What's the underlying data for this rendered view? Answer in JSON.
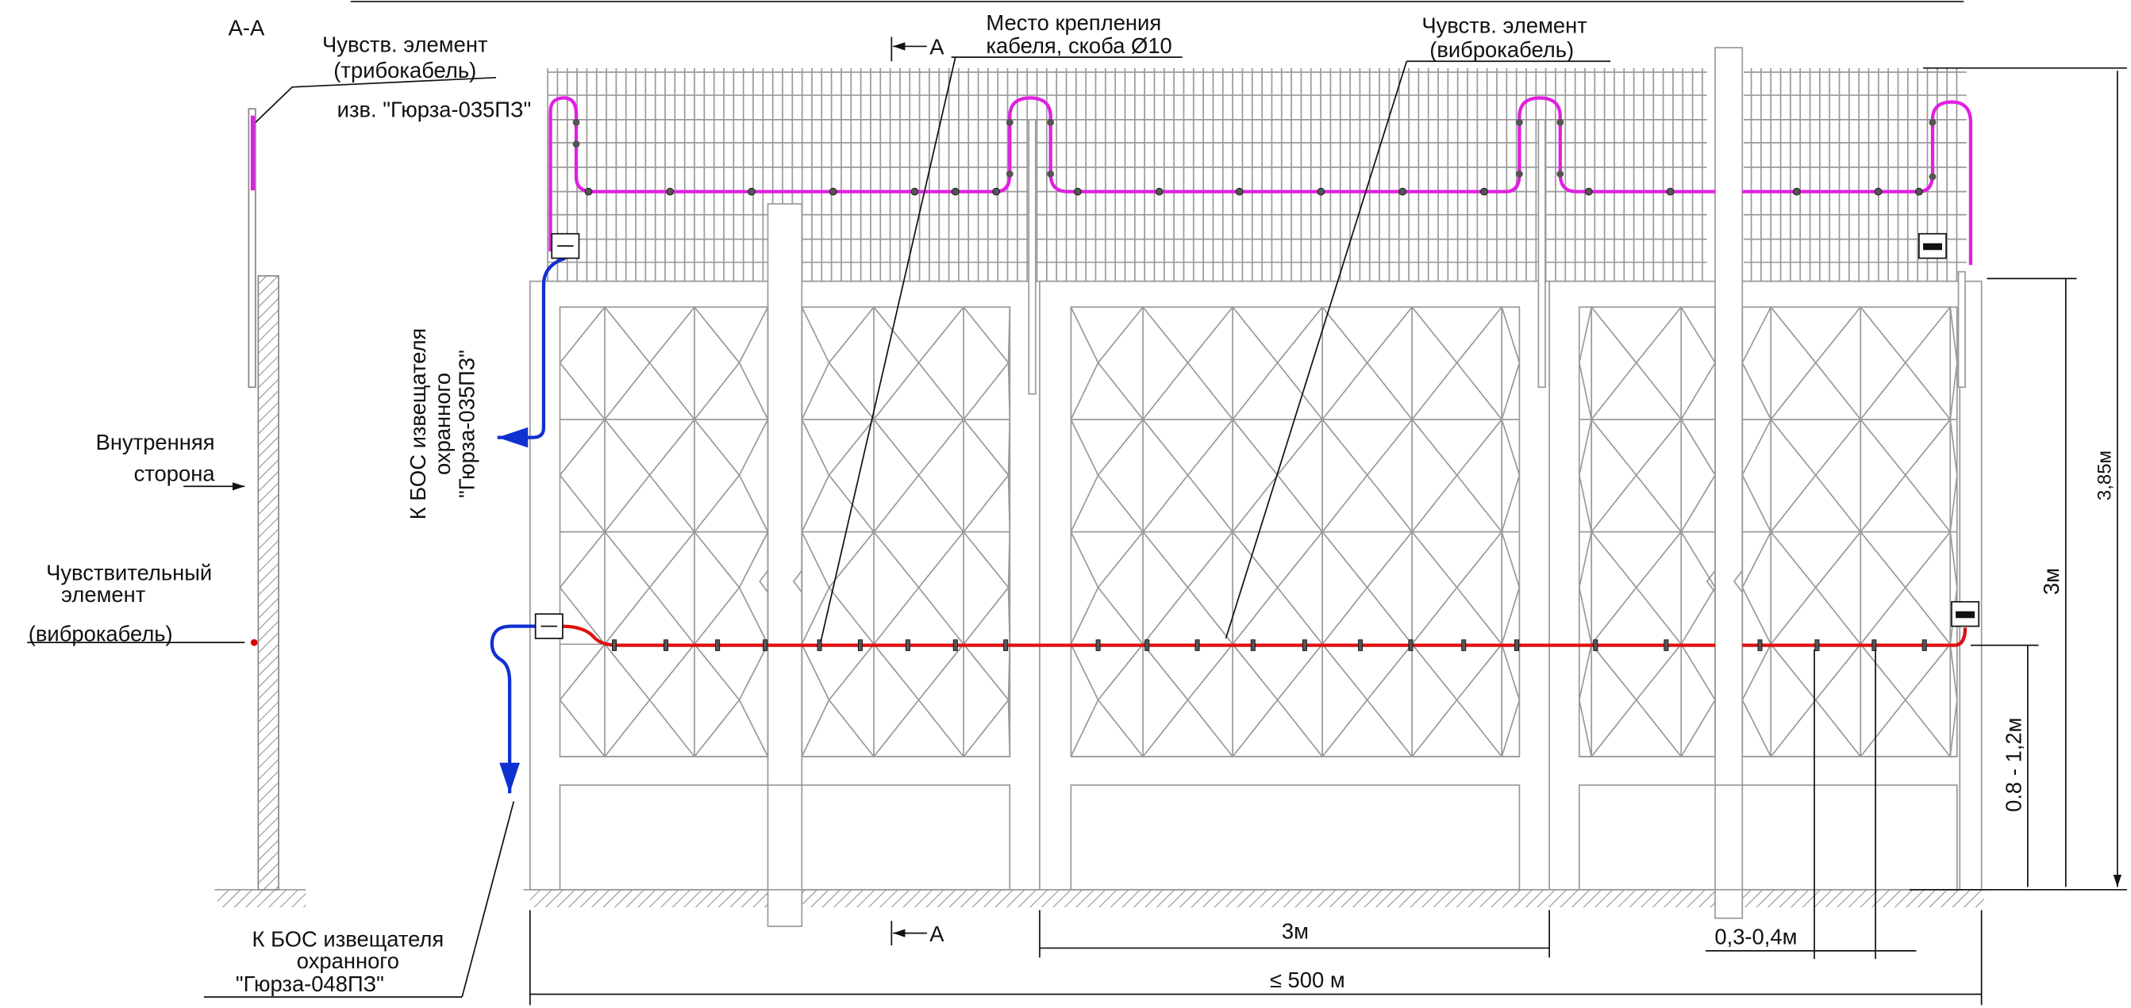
{
  "section_label": "А-А",
  "tribo_label": {
    "line1": "Чувств. элемент",
    "line2": "(трибокабель)"
  },
  "detector_label": "изв. \"Гюрза-035ПЗ\"",
  "mount_label": {
    "line1": "Место крепления",
    "line2": "кабеля, скоба Ø10"
  },
  "vibro_label": {
    "line1": "Чувств. элемент",
    "line2": "(виброкабель)"
  },
  "inner_side": {
    "line1": "Внутренняя",
    "line2": "сторона"
  },
  "sensor_label": {
    "line1": "Чувствительный",
    "line2": "элемент",
    "line3": "(виброкабель)"
  },
  "bos_035": {
    "line1": "К БОС извещателя",
    "line2": "охранного",
    "line3": "\"Гюрза-035ПЗ\""
  },
  "bos_048": {
    "line1": "К БОС извещателя",
    "line2": "охранного",
    "line3": "\"Гюрза-048ПЗ\""
  },
  "section_marks": {
    "top": "А",
    "bottom": "А"
  },
  "dimensions": {
    "panel_width": "3м",
    "total_length": "≤ 500 м",
    "clip_spacing": "0,3-0,4м",
    "total_height": "3,85м",
    "fence_height": "3м",
    "cable_height": "0.8 - 1,2м"
  }
}
